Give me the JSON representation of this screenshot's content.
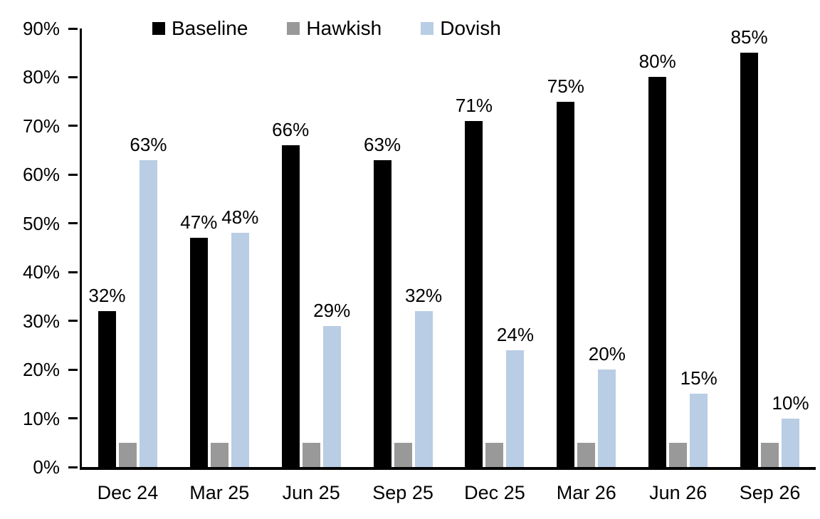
{
  "chart_data": {
    "type": "bar",
    "title": "",
    "xlabel": "",
    "ylabel": "",
    "categories": [
      "Dec 24",
      "Mar 25",
      "Jun 25",
      "Sep 25",
      "Dec 25",
      "Mar 26",
      "Jun 26",
      "Sep 26"
    ],
    "series": [
      {
        "name": "Baseline",
        "color": "#000000",
        "values": [
          32,
          47,
          66,
          63,
          71,
          75,
          80,
          85
        ],
        "labels": [
          "32%",
          "47%",
          "66%",
          "63%",
          "71%",
          "75%",
          "80%",
          "85%"
        ],
        "show_labels": true
      },
      {
        "name": "Hawkish",
        "color": "#999999",
        "values": [
          5,
          5,
          5,
          5,
          5,
          5,
          5,
          5
        ],
        "labels": [],
        "show_labels": false
      },
      {
        "name": "Dovish",
        "color": "#B9CDE4",
        "values": [
          63,
          48,
          29,
          32,
          24,
          20,
          15,
          10
        ],
        "labels": [
          "63%",
          "48%",
          "29%",
          "32%",
          "24%",
          "20%",
          "15%",
          "10%"
        ],
        "show_labels": true
      }
    ],
    "ylim": [
      0,
      90
    ],
    "y_ticks": [
      "0%",
      "10%",
      "20%",
      "30%",
      "40%",
      "50%",
      "60%",
      "70%",
      "80%",
      "90%"
    ],
    "grid": false,
    "legend_position": "top",
    "axis_color": "#000000",
    "background_color": "#ffffff"
  }
}
